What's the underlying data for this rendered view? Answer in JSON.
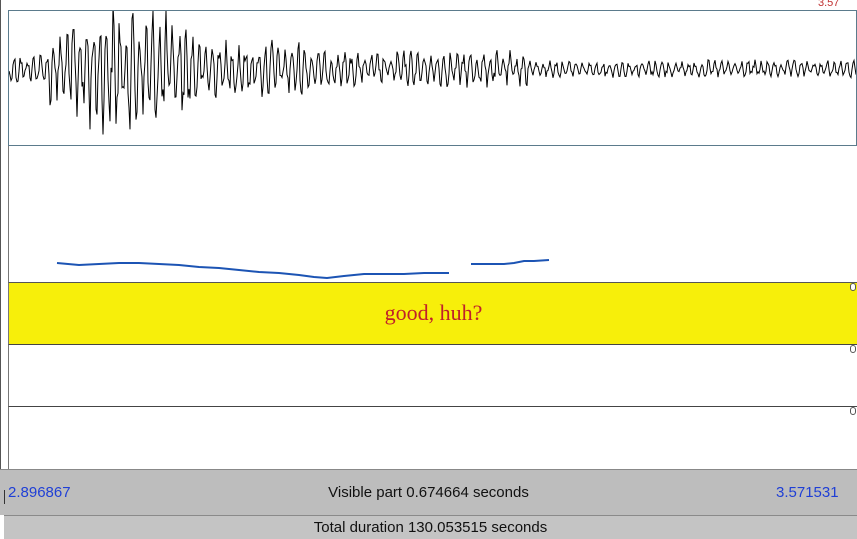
{
  "editor": {
    "top_right_value": "3.57",
    "tiers": [
      {
        "text": "good, huh?"
      },
      {
        "text": ""
      },
      {
        "text": ""
      }
    ]
  },
  "time_bar": {
    "start_time": "2.896867",
    "visible_part": "Visible part 0.674664 seconds",
    "end_time": "3.571531"
  },
  "total_bar": {
    "total_duration": "Total duration 130.053515 seconds"
  },
  "colors": {
    "tier_highlight": "#f7ef0a",
    "tier_text": "#c0202a",
    "time_text": "#1f3fd6",
    "pitch_line": "#1c54b4",
    "waveform": "#000000"
  }
}
